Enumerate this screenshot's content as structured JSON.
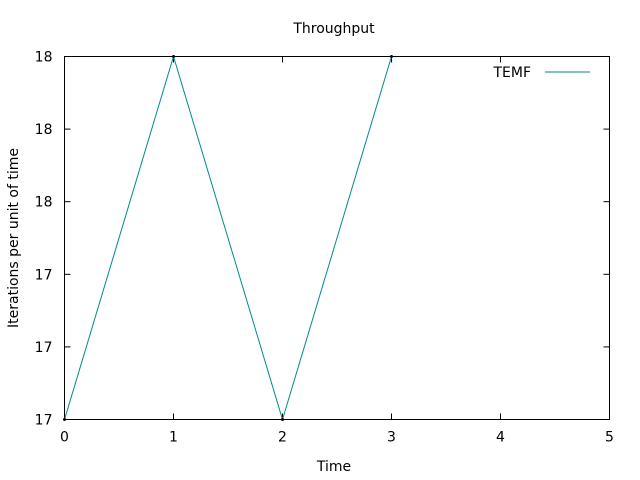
{
  "chart_data": {
    "type": "line",
    "title": "Throughput",
    "xlabel": "Time",
    "ylabel": "Iterations per unit of time",
    "xlim": [
      0,
      5
    ],
    "ylim": [
      17.0,
      18.0
    ],
    "x_ticks": [
      0,
      1,
      2,
      3,
      4,
      5
    ],
    "x_tick_labels": [
      "0",
      "1",
      "2",
      "3",
      "4",
      "5"
    ],
    "y_ticks": [
      17.0,
      17.2,
      17.4,
      17.6,
      17.8,
      18.0
    ],
    "y_tick_labels": [
      "17",
      "17",
      "17",
      "18",
      "18",
      "18"
    ],
    "grid": false,
    "legend_position": "top-right",
    "series": [
      {
        "name": "TEMF",
        "color": "#008b8b",
        "x": [
          0,
          1,
          2,
          3
        ],
        "y": [
          17.0,
          18.0,
          17.0,
          18.0
        ]
      }
    ]
  }
}
